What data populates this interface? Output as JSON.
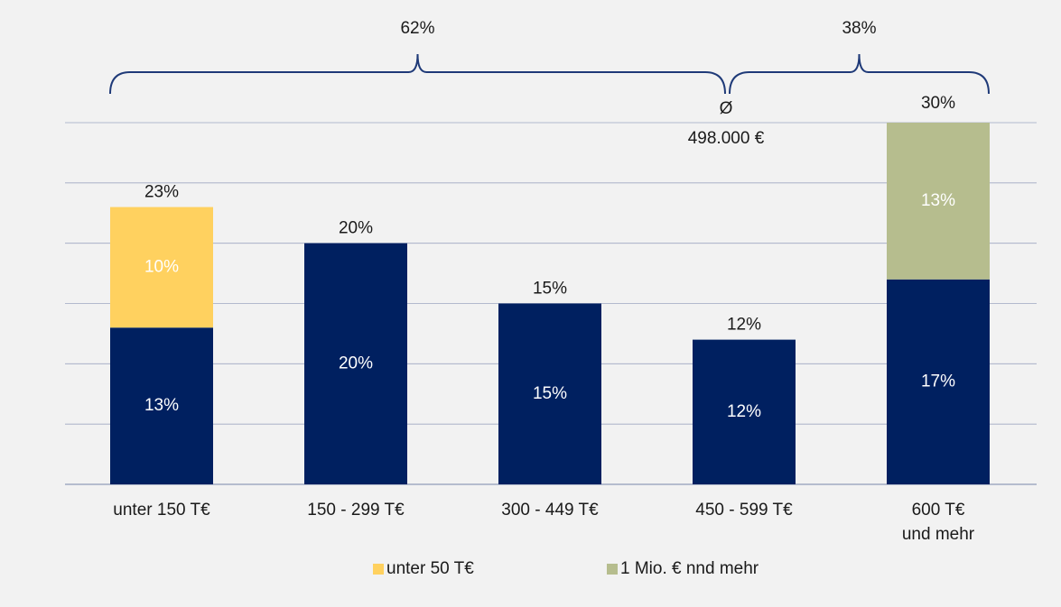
{
  "colors": {
    "background": "#f2f2f2",
    "navy": "#002060",
    "yellow": "#ffd15f",
    "olive": "#b6bd8e",
    "grid": "#5a6b9a",
    "text": "#1a1a1a",
    "bracket": "#1f3a78"
  },
  "chart_data": {
    "type": "bar",
    "stacked": true,
    "categories": [
      [
        "unter 150 T€"
      ],
      [
        "150 - 299 T€"
      ],
      [
        "300 - 449 T€"
      ],
      [
        "450 - 599 T€"
      ],
      [
        "600 T€",
        "und mehr"
      ]
    ],
    "totals": [
      23,
      20,
      15,
      12,
      30
    ],
    "total_labels": [
      "23%",
      "20%",
      "15%",
      "12%",
      "30%"
    ],
    "base_values": [
      13,
      20,
      15,
      12,
      17
    ],
    "base_labels": [
      "13%",
      "20%",
      "15%",
      "12%",
      "17%"
    ],
    "top_segments": [
      {
        "category_index": 0,
        "value": 10,
        "label": "10%",
        "series": "unter 50 T€"
      },
      {
        "category_index": 4,
        "value": 13,
        "label": "13%",
        "series": "1 Mio. € nnd mehr"
      }
    ],
    "ylim": [
      0,
      30
    ],
    "gridlines": [
      0,
      5,
      10,
      15,
      20,
      25,
      30
    ],
    "legend": {
      "position": "bottom",
      "items": [
        {
          "label": "unter 50 T€",
          "color": "#ffd15f"
        },
        {
          "label": "1 Mio. € nnd mehr",
          "color": "#b6bd8e"
        }
      ]
    },
    "annotations": {
      "brackets": [
        {
          "label": "62%",
          "from_category": 0,
          "to_category": 3
        },
        {
          "label": "38%",
          "from_category": 3,
          "to_category": 4
        }
      ],
      "average": {
        "symbol": "Ø",
        "label": "498.000 €"
      }
    }
  }
}
